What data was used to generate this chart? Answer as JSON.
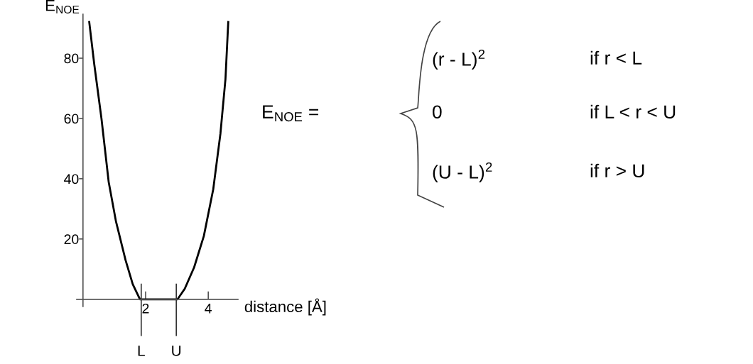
{
  "chart_data": {
    "type": "line",
    "ylabel": "E$_{NOE}$",
    "xlabel": "distance [Å]",
    "series": [
      {
        "color": "#000000",
        "x": [
          0.2,
          0.36,
          0.59,
          0.82,
          1.05,
          1.36,
          1.59,
          1.82,
          3.02,
          3.25,
          3.55,
          3.86,
          4.16,
          4.39,
          4.55,
          4.64
        ],
        "values": [
          92,
          78,
          60,
          39,
          26,
          13,
          5,
          0,
          0,
          3.5,
          10.6,
          21,
          36.5,
          55,
          73,
          92
        ]
      }
    ],
    "xlim": [
      -0.2,
      4.95
    ],
    "ylim": [
      -2.4,
      94.6
    ],
    "xticks": [
      2,
      4
    ],
    "yticks": [
      20,
      40,
      60,
      80
    ],
    "ref_lines": [
      {
        "axis": "x",
        "value": 1.86,
        "label": "L"
      },
      {
        "axis": "x",
        "value": 2.98,
        "label": "U"
      }
    ],
    "annotations": [
      "E$_{NOE}$ =",
      "(r - L)$^{2}$",
      "if r < L",
      "0",
      "if L < r < U",
      "(U - L)$^{2}$",
      "if r > U"
    ],
    "grid": false,
    "marker": "none",
    "line_style": "solid"
  }
}
